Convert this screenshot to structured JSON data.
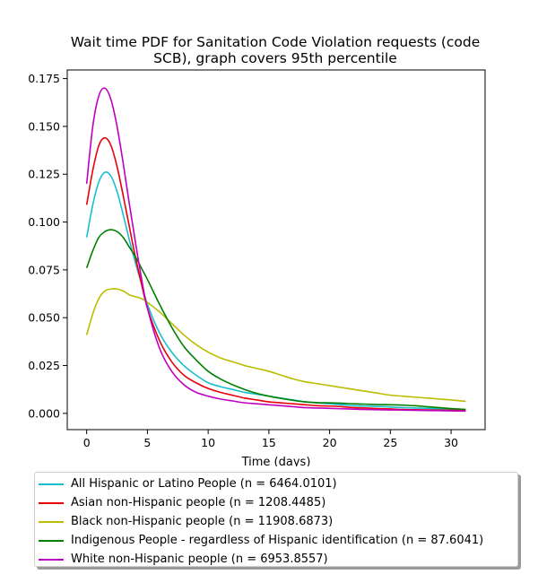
{
  "chart_data": {
    "type": "line",
    "title": "Wait time PDF for Sanitation Code Violation  requests (code SCB), graph covers 95th percentile",
    "title_lines": [
      "Wait time PDF for Sanitation Code Violation  requests (code",
      "SCB), graph covers 95th percentile"
    ],
    "xlabel": "Time (days)",
    "ylabel": "",
    "xlim": [
      -1.6,
      32.8
    ],
    "ylim": [
      -0.0085,
      0.1795
    ],
    "xticks": [
      0,
      5,
      10,
      15,
      20,
      25,
      30
    ],
    "yticks": [
      0.0,
      0.025,
      0.05,
      0.075,
      0.1,
      0.125,
      0.15,
      0.175
    ],
    "ytick_labels": [
      "0.000",
      "0.025",
      "0.050",
      "0.075",
      "0.100",
      "0.125",
      "0.150",
      "0.175"
    ],
    "x": [
      0,
      0.5,
      1,
      1.5,
      2,
      2.5,
      3,
      3.5,
      4,
      4.5,
      5,
      6,
      7,
      8,
      9,
      10,
      11,
      12,
      13,
      14,
      15,
      16,
      17,
      18,
      19,
      20,
      21,
      22,
      23,
      24,
      25,
      26,
      27,
      28,
      29,
      30,
      31.2
    ],
    "series": [
      {
        "name": "All Hispanic or Latino People (n = 6464.0101)",
        "color": "#17becf",
        "values": [
          0.092,
          0.109,
          0.121,
          0.126,
          0.124,
          0.116,
          0.104,
          0.091,
          0.079,
          0.068,
          0.057,
          0.042,
          0.032,
          0.025,
          0.02,
          0.016,
          0.014,
          0.0125,
          0.011,
          0.01,
          0.009,
          0.008,
          0.007,
          0.006,
          0.0055,
          0.005,
          0.0045,
          0.004,
          0.0038,
          0.0036,
          0.0033,
          0.003,
          0.0028,
          0.0026,
          0.0024,
          0.0022,
          0.002
        ]
      },
      {
        "name": "Asian non-Hispanic people (n = 1208.4485)",
        "color": "#e8000b",
        "values": [
          0.109,
          0.127,
          0.14,
          0.144,
          0.14,
          0.129,
          0.114,
          0.098,
          0.082,
          0.068,
          0.055,
          0.038,
          0.027,
          0.02,
          0.016,
          0.013,
          0.011,
          0.0095,
          0.008,
          0.007,
          0.006,
          0.0055,
          0.005,
          0.0045,
          0.004,
          0.0038,
          0.0035,
          0.003,
          0.0028,
          0.0025,
          0.0023,
          0.002,
          0.0019,
          0.0018,
          0.0017,
          0.0016,
          0.0015
        ]
      },
      {
        "name": "Black non-Hispanic people (n = 11908.6873)",
        "color": "#bcbd00",
        "values": [
          0.041,
          0.052,
          0.06,
          0.064,
          0.065,
          0.065,
          0.064,
          0.062,
          0.061,
          0.06,
          0.058,
          0.053,
          0.047,
          0.041,
          0.036,
          0.032,
          0.029,
          0.027,
          0.025,
          0.0235,
          0.022,
          0.02,
          0.018,
          0.0165,
          0.0155,
          0.0145,
          0.0135,
          0.0125,
          0.0115,
          0.0105,
          0.0095,
          0.009,
          0.0085,
          0.008,
          0.0075,
          0.007,
          0.0063
        ]
      },
      {
        "name": "Indigenous People - regardless of Hispanic identification (n = 87.6041)",
        "color": "#008000",
        "values": [
          0.076,
          0.085,
          0.092,
          0.095,
          0.096,
          0.095,
          0.092,
          0.087,
          0.082,
          0.076,
          0.07,
          0.057,
          0.045,
          0.035,
          0.028,
          0.022,
          0.018,
          0.015,
          0.0125,
          0.0105,
          0.009,
          0.0078,
          0.0068,
          0.006,
          0.0056,
          0.0055,
          0.0053,
          0.005,
          0.0048,
          0.0046,
          0.0045,
          0.0043,
          0.004,
          0.0035,
          0.003,
          0.0025,
          0.0021
        ]
      },
      {
        "name": "White non-Hispanic people (n = 6953.8557)",
        "color": "#c000c0",
        "values": [
          0.12,
          0.15,
          0.166,
          0.17,
          0.164,
          0.15,
          0.131,
          0.11,
          0.09,
          0.071,
          0.055,
          0.034,
          0.022,
          0.015,
          0.011,
          0.009,
          0.0075,
          0.0065,
          0.0055,
          0.005,
          0.0045,
          0.004,
          0.0035,
          0.003,
          0.0028,
          0.0026,
          0.0024,
          0.0022,
          0.002,
          0.0019,
          0.0018,
          0.0017,
          0.0016,
          0.0015,
          0.0014,
          0.0013,
          0.0012
        ]
      }
    ]
  }
}
